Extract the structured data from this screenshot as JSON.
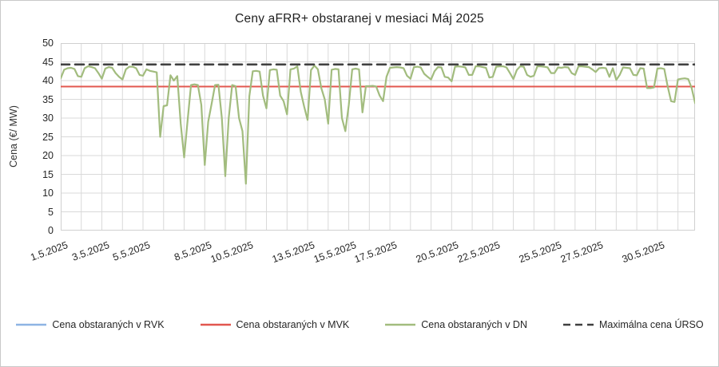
{
  "chart_data": {
    "type": "line",
    "title": "Ceny aFRR+ obstaranej v mesiaci Máj 2025",
    "ylabel": "Cena (€/ MW)",
    "xlabel": "",
    "ylim": [
      0,
      50
    ],
    "y_ticks": [
      50,
      45,
      40,
      35,
      30,
      25,
      20,
      15,
      10,
      5,
      0
    ],
    "x_range_days": [
      1,
      31.83
    ],
    "x_grid_day_count": 31,
    "x_ticks": [
      {
        "day": 1,
        "label": "1.5.2025"
      },
      {
        "day": 3,
        "label": "3.5.2025"
      },
      {
        "day": 5,
        "label": "5.5.2025"
      },
      {
        "day": 8,
        "label": "8.5.2025"
      },
      {
        "day": 10,
        "label": "10.5.2025"
      },
      {
        "day": 13,
        "label": "13.5.2025"
      },
      {
        "day": 15,
        "label": "15.5.2025"
      },
      {
        "day": 17,
        "label": "17.5.2025"
      },
      {
        "day": 20,
        "label": "20.5.2025"
      },
      {
        "day": 22,
        "label": "22.5.2025"
      },
      {
        "day": 25,
        "label": "25.5.2025"
      },
      {
        "day": 27,
        "label": "27.5.2025"
      },
      {
        "day": 30,
        "label": "30.5.2025"
      }
    ],
    "grid": true,
    "grid_color": "#d9d9d9",
    "plot_border_color": "#d0d0d0",
    "legend_position": "bottom",
    "points_per_day": 6,
    "series": [
      {
        "name": "Cena obstaraných v RVK",
        "color": "#8eb4e3",
        "style": "solid",
        "width": 2,
        "constant_value": 38.4
      },
      {
        "name": "Cena obstaraných v MVK",
        "color": "#e2574f",
        "style": "solid",
        "width": 2,
        "constant_value": 38.4
      },
      {
        "name": "Cena obstaraných v DN",
        "color": "#a2bc7e",
        "style": "solid",
        "width": 2.2,
        "values": [
          40.6,
          42.9,
          43.3,
          43.4,
          43.1,
          41.2,
          41.0,
          43.3,
          43.8,
          43.6,
          43.3,
          42.0,
          40.5,
          43.2,
          43.6,
          43.4,
          42.0,
          41.0,
          40.3,
          43.0,
          43.7,
          43.7,
          43.3,
          41.5,
          41.3,
          43.0,
          42.6,
          42.4,
          42.2,
          25.0,
          33.2,
          33.4,
          41.4,
          40.0,
          41.2,
          28.5,
          19.5,
          29.3,
          38.8,
          39.0,
          38.8,
          33.5,
          17.5,
          29.0,
          33.8,
          38.8,
          38.9,
          30.0,
          14.5,
          30.0,
          38.8,
          38.5,
          30.0,
          26.5,
          12.5,
          35.8,
          42.5,
          42.6,
          42.4,
          36.0,
          32.6,
          42.8,
          43.0,
          42.9,
          36.0,
          34.5,
          31.0,
          43.0,
          43.2,
          43.8,
          37.0,
          33.0,
          29.5,
          42.8,
          44.0,
          43.0,
          38.0,
          35.0,
          28.5,
          42.9,
          43.1,
          43.0,
          30.0,
          26.5,
          33.5,
          43.0,
          43.2,
          43.0,
          31.5,
          38.5,
          38.5,
          38.6,
          38.4,
          36.0,
          34.5,
          41.0,
          43.4,
          43.5,
          43.6,
          43.5,
          43.3,
          41.3,
          40.5,
          43.6,
          43.7,
          43.5,
          41.8,
          41.0,
          40.3,
          42.5,
          43.6,
          43.5,
          41.0,
          40.8,
          39.8,
          43.7,
          43.8,
          43.7,
          43.5,
          41.5,
          41.5,
          43.8,
          43.8,
          43.6,
          43.4,
          40.8,
          41.0,
          43.7,
          43.8,
          43.8,
          43.5,
          42.0,
          40.4,
          42.8,
          43.8,
          43.7,
          41.5,
          41.0,
          41.3,
          43.8,
          43.8,
          43.7,
          43.5,
          42.0,
          42.0,
          43.5,
          43.4,
          43.6,
          43.5,
          42.0,
          41.5,
          43.8,
          43.8,
          43.7,
          43.6,
          43.0,
          42.3,
          43.3,
          43.4,
          43.3,
          41.0,
          43.3,
          40.2,
          41.5,
          43.5,
          43.4,
          43.3,
          41.5,
          41.4,
          43.3,
          43.2,
          38.0,
          38.0,
          38.2,
          43.2,
          43.3,
          43.1,
          38.5,
          34.5,
          34.3,
          40.3,
          40.5,
          40.6,
          40.4,
          38.0,
          34.0
        ]
      },
      {
        "name": "Maximálna cena ÚRSO",
        "color": "#404040",
        "style": "dashed",
        "width": 2.6,
        "constant_value": 44.3
      }
    ]
  }
}
